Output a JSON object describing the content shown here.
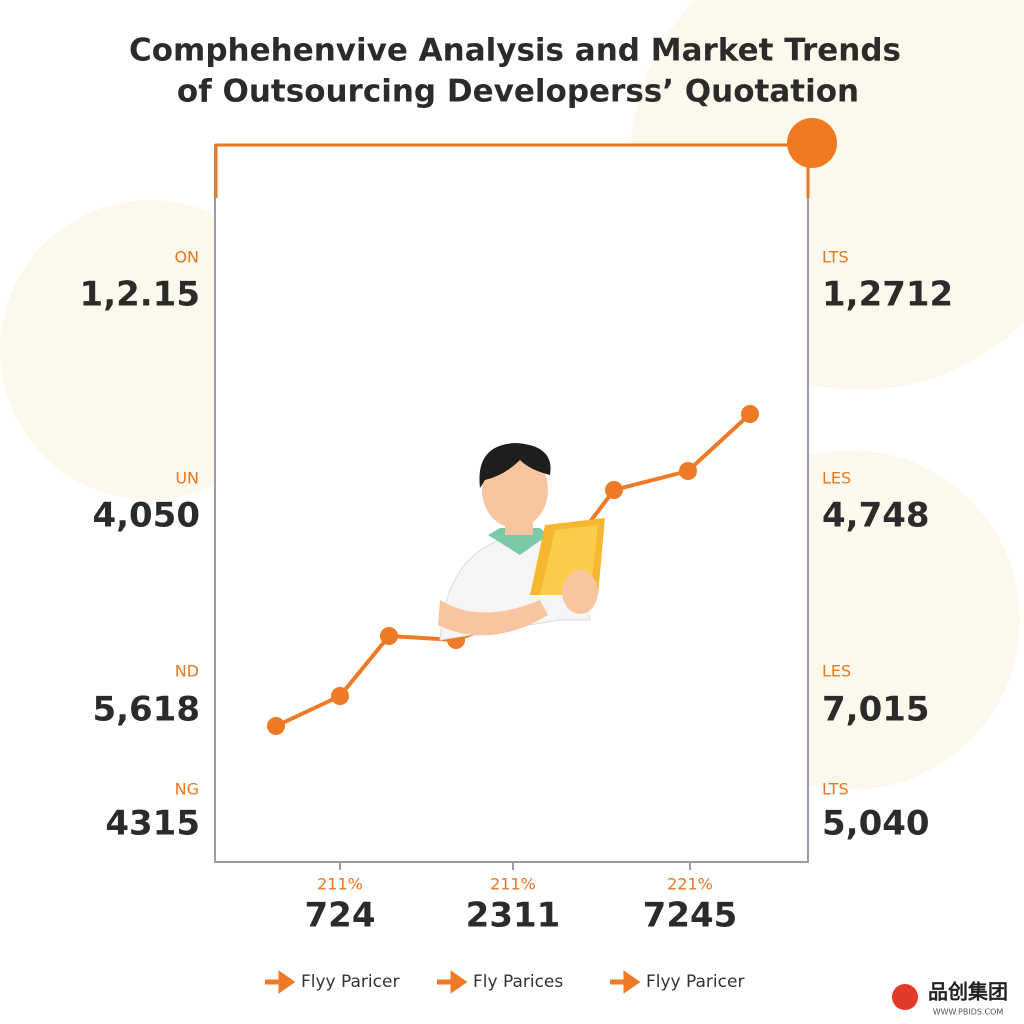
{
  "title": [
    "Comphehenvive Analysis and Market Trends",
    "of Outsourcing Developerss’ Quotation"
  ],
  "left_labels": [
    {
      "tag": "ON",
      "value": "1,2.15"
    },
    {
      "tag": "UN",
      "value": "4,050"
    },
    {
      "tag": "ND",
      "value": "5,618"
    },
    {
      "tag": "NG",
      "value": "4315"
    }
  ],
  "right_labels": [
    {
      "tag": "LTS",
      "value": "1,2712"
    },
    {
      "tag": "LES",
      "value": "4,748"
    },
    {
      "tag": "LES",
      "value": "7,015"
    },
    {
      "tag": "LTS",
      "value": "5,040"
    }
  ],
  "bottom_labels": [
    {
      "tag": "211%",
      "value": "724"
    },
    {
      "tag": "211%",
      "value": "2311"
    },
    {
      "tag": "221%",
      "value": "7245"
    }
  ],
  "legend": [
    "Flyy Paricer",
    "Fly Parices",
    "Flyy Paricer"
  ],
  "logo": {
    "name": "品创集团",
    "url": "WWW.PBIDS.COM"
  }
}
